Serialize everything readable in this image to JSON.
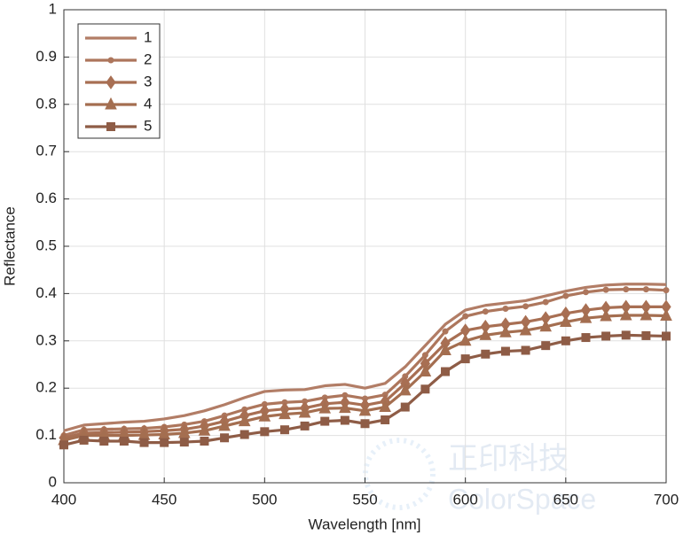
{
  "chart_data": {
    "type": "line",
    "xlabel": "Wavelength [nm]",
    "ylabel": "Reflectance",
    "x": [
      400,
      410,
      420,
      430,
      440,
      450,
      460,
      470,
      480,
      490,
      500,
      510,
      520,
      530,
      540,
      550,
      560,
      570,
      580,
      590,
      600,
      610,
      620,
      630,
      640,
      650,
      660,
      670,
      680,
      690,
      700
    ],
    "series": [
      {
        "name": "1",
        "color": "#b27d66",
        "marker": "none",
        "values": [
          0.11,
          0.122,
          0.125,
          0.128,
          0.13,
          0.135,
          0.142,
          0.152,
          0.165,
          0.18,
          0.193,
          0.196,
          0.197,
          0.205,
          0.208,
          0.2,
          0.21,
          0.245,
          0.29,
          0.335,
          0.365,
          0.375,
          0.38,
          0.385,
          0.395,
          0.405,
          0.413,
          0.418,
          0.42,
          0.42,
          0.419
        ]
      },
      {
        "name": "2",
        "color": "#ad765c",
        "marker": "circle",
        "values": [
          0.1,
          0.112,
          0.113,
          0.114,
          0.115,
          0.118,
          0.123,
          0.13,
          0.142,
          0.155,
          0.166,
          0.17,
          0.172,
          0.18,
          0.185,
          0.178,
          0.186,
          0.225,
          0.27,
          0.32,
          0.352,
          0.362,
          0.368,
          0.373,
          0.382,
          0.395,
          0.403,
          0.408,
          0.409,
          0.409,
          0.407
        ]
      },
      {
        "name": "3",
        "color": "#a86f53",
        "marker": "diamond",
        "values": [
          0.095,
          0.105,
          0.106,
          0.107,
          0.108,
          0.11,
          0.113,
          0.12,
          0.13,
          0.142,
          0.152,
          0.156,
          0.158,
          0.167,
          0.17,
          0.164,
          0.172,
          0.21,
          0.252,
          0.295,
          0.322,
          0.33,
          0.335,
          0.34,
          0.348,
          0.358,
          0.365,
          0.37,
          0.372,
          0.372,
          0.372
        ]
      },
      {
        "name": "4",
        "color": "#a46e50",
        "marker": "triangle",
        "values": [
          0.09,
          0.1,
          0.1,
          0.1,
          0.101,
          0.102,
          0.105,
          0.11,
          0.12,
          0.13,
          0.14,
          0.145,
          0.148,
          0.157,
          0.158,
          0.152,
          0.16,
          0.195,
          0.235,
          0.28,
          0.3,
          0.312,
          0.318,
          0.322,
          0.33,
          0.34,
          0.348,
          0.352,
          0.354,
          0.354,
          0.353
        ]
      },
      {
        "name": "5",
        "color": "#8e5c46",
        "marker": "square",
        "values": [
          0.08,
          0.09,
          0.088,
          0.088,
          0.085,
          0.085,
          0.086,
          0.088,
          0.095,
          0.102,
          0.108,
          0.112,
          0.12,
          0.13,
          0.132,
          0.125,
          0.133,
          0.16,
          0.198,
          0.235,
          0.262,
          0.272,
          0.278,
          0.28,
          0.29,
          0.3,
          0.307,
          0.31,
          0.312,
          0.311,
          0.31
        ]
      }
    ],
    "xlim": [
      400,
      700
    ],
    "xticks": [
      400,
      450,
      500,
      550,
      600,
      650,
      700
    ],
    "ylim": [
      0,
      1
    ],
    "yticks": [
      0,
      0.1,
      0.2,
      0.3,
      0.4,
      0.5,
      0.6,
      0.7,
      0.8,
      0.9,
      1
    ],
    "grid": true,
    "legend": "upper-left",
    "watermark": [
      "正印科技",
      "ColorSpace"
    ]
  }
}
